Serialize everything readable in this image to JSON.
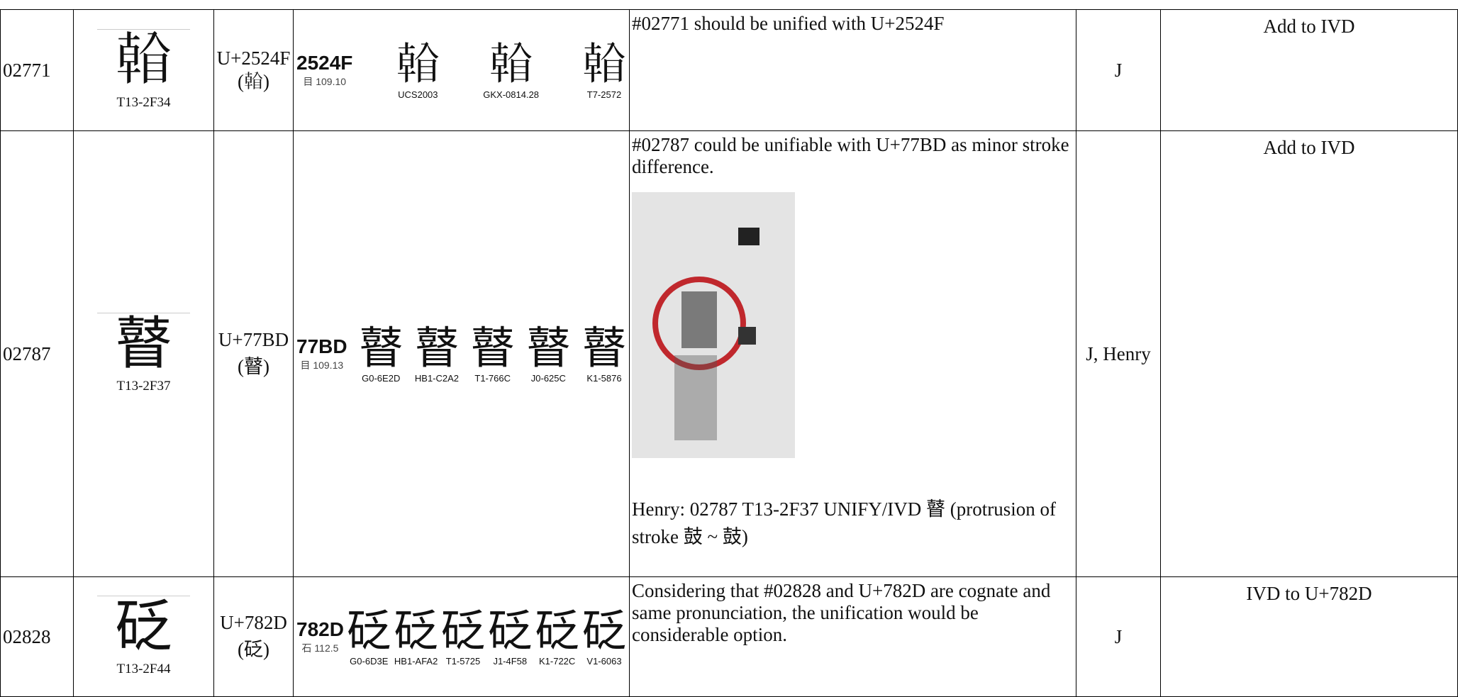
{
  "table": {
    "rows": [
      {
        "id": "02771",
        "glyph": "𥉏",
        "source": "T13-2F34",
        "ucs": "U+2524F(𥉏)",
        "evidence": {
          "code": "2524F",
          "radical": "目 109.10",
          "glyphs": [
            {
              "char": "𥉏",
              "label": "UCS2003"
            },
            {
              "char": "𥉏",
              "label": "GKX-0814.28"
            },
            {
              "char": "𥉏",
              "label": "T7-2572"
            }
          ]
        },
        "comment": [
          "#02771 should be unified with U+2524F"
        ],
        "from": "J",
        "disposition": "Add to IVD"
      },
      {
        "id": "02787",
        "glyph": "瞽",
        "source": "T13-2F37",
        "ucs": "U+77BD(瞽)",
        "evidence": {
          "code": "77BD",
          "radical": "目 109.13",
          "glyphs": [
            {
              "char": "瞽",
              "label": "G0-6E2D"
            },
            {
              "char": "瞽",
              "label": "HB1-C2A2"
            },
            {
              "char": "瞽",
              "label": "T1-766C"
            },
            {
              "char": "瞽",
              "label": "J0-625C"
            },
            {
              "char": "瞽",
              "label": "K1-5876"
            }
          ]
        },
        "comment": [
          "#02787 could be unifiable with U+77BD as minor stroke difference.",
          "Henry: 02787 T13-2F37 UNIFY/IVD 瞽 (protrusion of stroke 鼓 ~ 鼓)"
        ],
        "from": "J, Henry",
        "disposition": "Add to IVD"
      },
      {
        "id": "02828",
        "glyph": "砭",
        "source": "T13-2F44",
        "ucs": "U+782D(砭)",
        "evidence": {
          "code": "782D",
          "radical": "石 112.5",
          "glyphs": [
            {
              "char": "砭",
              "label": "G0-6D3E"
            },
            {
              "char": "砭",
              "label": "HB1-AFA2"
            },
            {
              "char": "砭",
              "label": "T1-5725"
            },
            {
              "char": "砭",
              "label": "J1-4F58"
            },
            {
              "char": "砭",
              "label": "K1-722C"
            },
            {
              "char": "砭",
              "label": "V1-6063"
            }
          ]
        },
        "comment": [
          "Considering that #02828 and U+782D are cognate and same pronunciation, the unification would be considerable option."
        ],
        "from": "J",
        "disposition": "IVD to U+782D"
      }
    ]
  }
}
